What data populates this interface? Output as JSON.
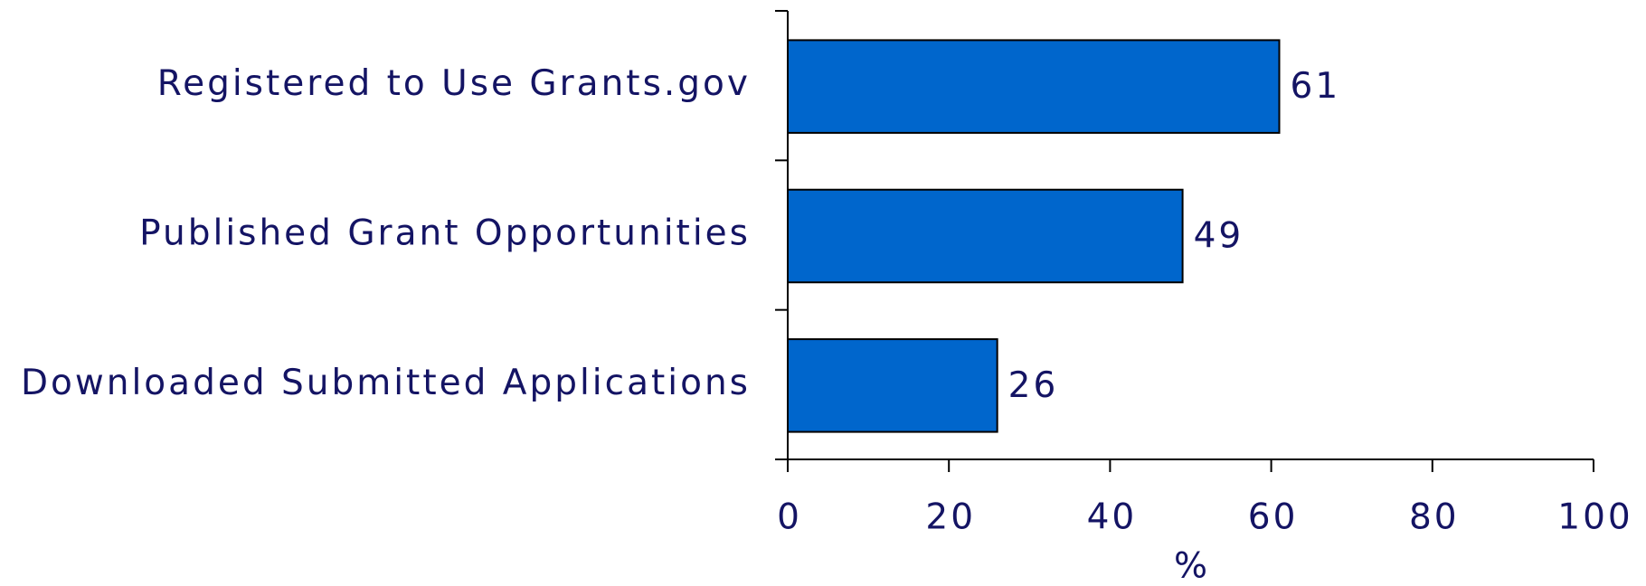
{
  "chart_data": {
    "type": "bar",
    "orientation": "horizontal",
    "categories": [
      "Registered to Use Grants.gov",
      "Published Grant Opportunities",
      "Downloaded Submitted Applications"
    ],
    "values": [
      61,
      49,
      26
    ],
    "color": "#0066cc",
    "x_label": "%",
    "xlim": [
      0,
      100
    ],
    "xticks": [
      0,
      20,
      40,
      60,
      80,
      100
    ],
    "grid": false
  }
}
